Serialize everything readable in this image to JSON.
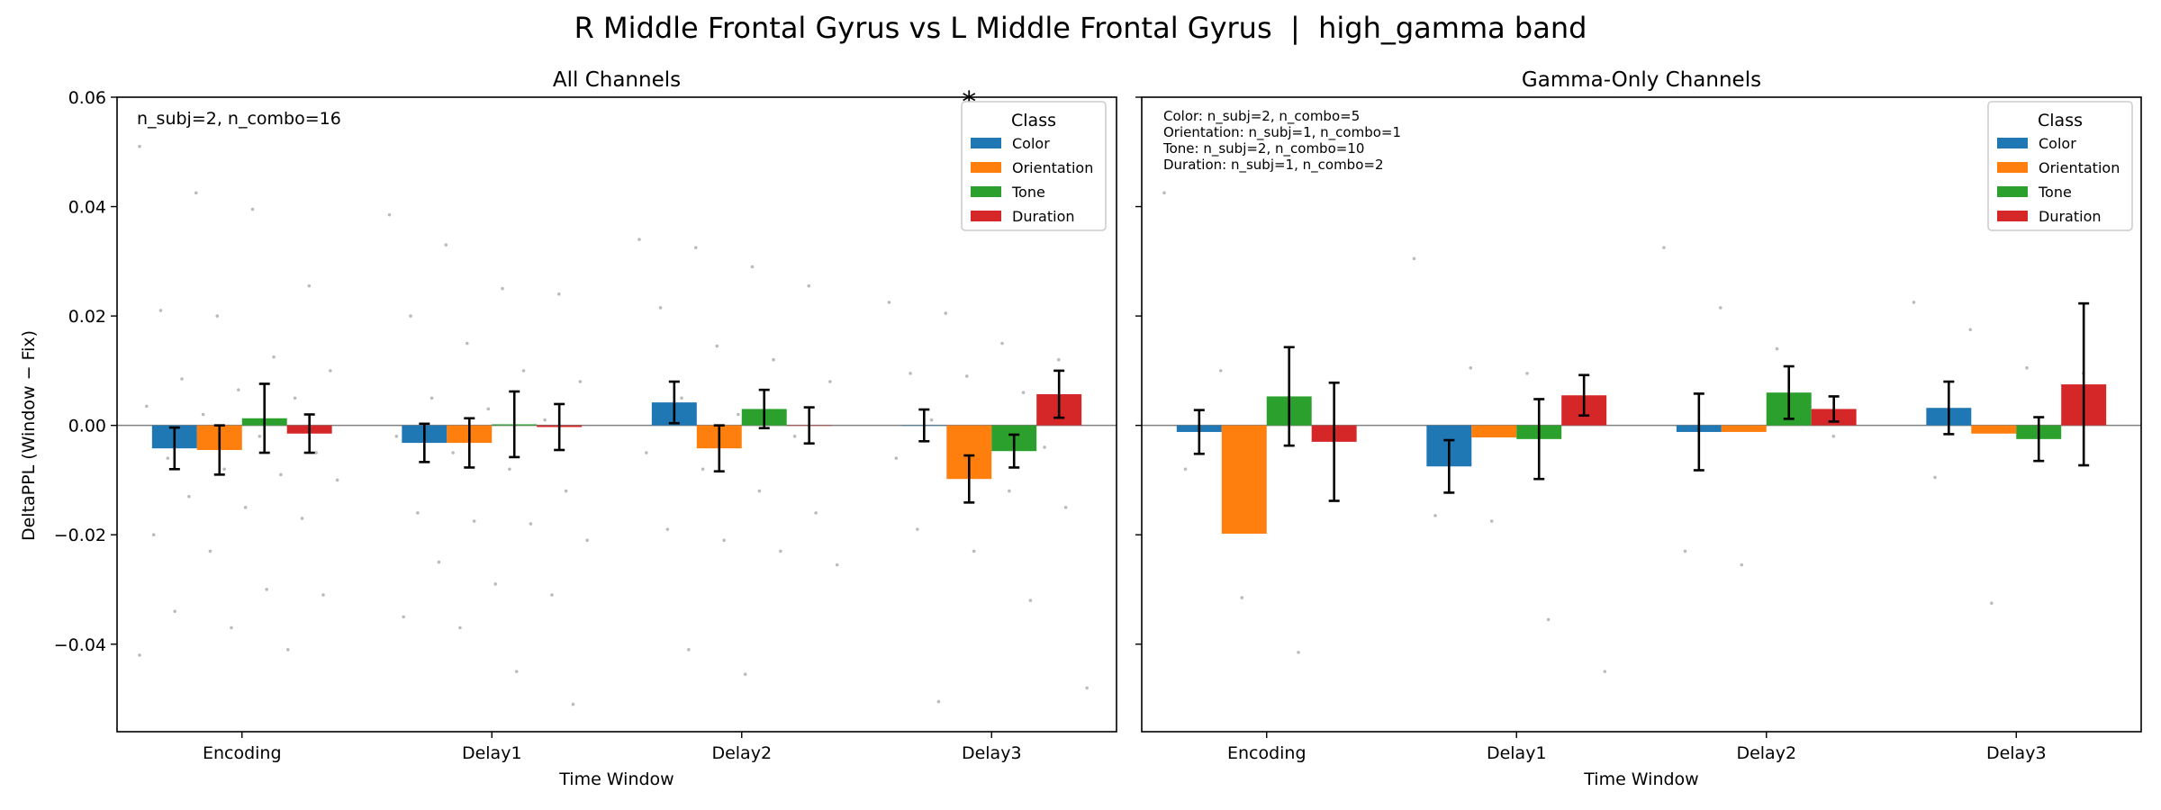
{
  "figure": {
    "suptitle": "R Middle Frontal Gyrus vs L Middle Frontal Gyrus  |  high_gamma band"
  },
  "colors": {
    "Color": "#1f77b4",
    "Orientation": "#ff7f0e",
    "Tone": "#2ca02c",
    "Duration": "#d62728",
    "star": "#ff0000",
    "points": "#bbbbbb"
  },
  "chart_data": [
    {
      "type": "bar",
      "title": "All Channels",
      "xlabel": "Time Window",
      "ylabel": "DeltaPPL (Window − Fix)",
      "categories": [
        "Encoding",
        "Delay1",
        "Delay2",
        "Delay3"
      ],
      "ylim": [
        -0.056,
        0.06
      ],
      "yticks": [
        -0.04,
        -0.02,
        0.0,
        0.02,
        0.04,
        0.06
      ],
      "ytick_labels": [
        "−0.04",
        "−0.02",
        "0.00",
        "0.02",
        "0.04",
        "0.06"
      ],
      "legend": {
        "title": "Class",
        "placement": "upper right"
      },
      "annotation": [
        "n_subj=2, n_combo=16"
      ],
      "significance": [
        {
          "category": "Delay3",
          "series": "Orientation",
          "label": "*"
        }
      ],
      "series": [
        {
          "name": "Color",
          "values": [
            -0.0042,
            -0.0032,
            0.0042,
            0.0
          ],
          "err": [
            0.0038,
            0.0035,
            0.0038,
            0.0029
          ]
        },
        {
          "name": "Orientation",
          "values": [
            -0.0045,
            -0.0032,
            -0.0042,
            -0.0098
          ],
          "err": [
            0.0045,
            0.0045,
            0.0042,
            0.0043
          ]
        },
        {
          "name": "Tone",
          "values": [
            0.0013,
            0.0002,
            0.003,
            -0.0047
          ],
          "err": [
            0.0063,
            0.006,
            0.0035,
            0.003
          ]
        },
        {
          "name": "Duration",
          "values": [
            -0.0015,
            -0.0003,
            0.0,
            0.0057
          ],
          "err": [
            0.0035,
            0.0042,
            0.0033,
            0.0043
          ]
        }
      ],
      "points": {
        "Encoding": [
          0.051,
          0.0425,
          0.0395,
          0.0255,
          0.021,
          0.02,
          0.0125,
          0.01,
          0.0085,
          0.0065,
          0.005,
          0.0035,
          0.002,
          -0.002,
          -0.005,
          -0.006,
          -0.008,
          -0.009,
          -0.01,
          -0.013,
          -0.015,
          -0.017,
          -0.02,
          -0.023,
          -0.03,
          -0.031,
          -0.034,
          -0.037,
          -0.041,
          -0.042
        ],
        "Delay1": [
          0.0385,
          0.033,
          0.025,
          0.024,
          0.02,
          0.015,
          0.01,
          0.008,
          0.005,
          0.003,
          0.001,
          -0.002,
          -0.005,
          -0.008,
          -0.012,
          -0.016,
          -0.0175,
          -0.018,
          -0.021,
          -0.025,
          -0.029,
          -0.031,
          -0.035,
          -0.037,
          -0.045,
          -0.051
        ],
        "Delay2": [
          0.034,
          0.0325,
          0.029,
          0.0255,
          0.0215,
          0.0145,
          0.012,
          0.008,
          0.005,
          0.002,
          -0.002,
          -0.005,
          -0.008,
          -0.012,
          -0.016,
          -0.019,
          -0.021,
          -0.023,
          -0.0255,
          -0.041,
          -0.0455
        ],
        "Delay3": [
          0.0225,
          0.0205,
          0.015,
          0.012,
          0.0095,
          0.009,
          0.006,
          0.003,
          0.001,
          -0.002,
          -0.004,
          -0.006,
          -0.009,
          -0.012,
          -0.015,
          -0.019,
          -0.023,
          -0.032,
          -0.048,
          -0.0505
        ]
      }
    },
    {
      "type": "bar",
      "title": "Gamma-Only Channels",
      "xlabel": "Time Window",
      "ylabel": "",
      "categories": [
        "Encoding",
        "Delay1",
        "Delay2",
        "Delay3"
      ],
      "ylim": [
        -0.056,
        0.06
      ],
      "yticks": [
        -0.04,
        -0.02,
        0.0,
        0.02,
        0.04,
        0.06
      ],
      "legend": {
        "title": "Class",
        "placement": "upper right"
      },
      "annotation": [
        "Color: n_subj=2, n_combo=5",
        "Orientation: n_subj=1, n_combo=1",
        "Tone: n_subj=2, n_combo=10",
        "Duration: n_subj=1, n_combo=2"
      ],
      "series": [
        {
          "name": "Color",
          "values": [
            -0.0012,
            -0.0075,
            -0.0012,
            0.0032
          ],
          "err": [
            0.004,
            0.0048,
            0.007,
            0.0048
          ]
        },
        {
          "name": "Orientation",
          "values": [
            -0.0198,
            -0.0022,
            -0.0012,
            -0.0015
          ],
          "err": [
            0,
            0,
            0,
            0
          ]
        },
        {
          "name": "Tone",
          "values": [
            0.0053,
            -0.0025,
            0.006,
            -0.0025
          ],
          "err": [
            0.009,
            0.0073,
            0.0048,
            0.004
          ]
        },
        {
          "name": "Duration",
          "values": [
            -0.003,
            0.0055,
            0.003,
            0.0075
          ],
          "err": [
            0.0108,
            0.0037,
            0.0023,
            0.0148
          ]
        }
      ],
      "points": {
        "Encoding": [
          0.0425,
          0.01,
          0.005,
          -0.003,
          -0.008,
          -0.0315,
          -0.0415
        ],
        "Delay1": [
          0.0305,
          0.0105,
          0.0095,
          0.005,
          -0.0165,
          -0.0175,
          -0.0355,
          -0.045
        ],
        "Delay2": [
          0.0325,
          0.0215,
          0.014,
          -0.002,
          -0.023,
          -0.0255
        ],
        "Delay3": [
          0.0225,
          0.0175,
          0.0105,
          0.0095,
          -0.0095,
          -0.0325
        ]
      }
    }
  ]
}
